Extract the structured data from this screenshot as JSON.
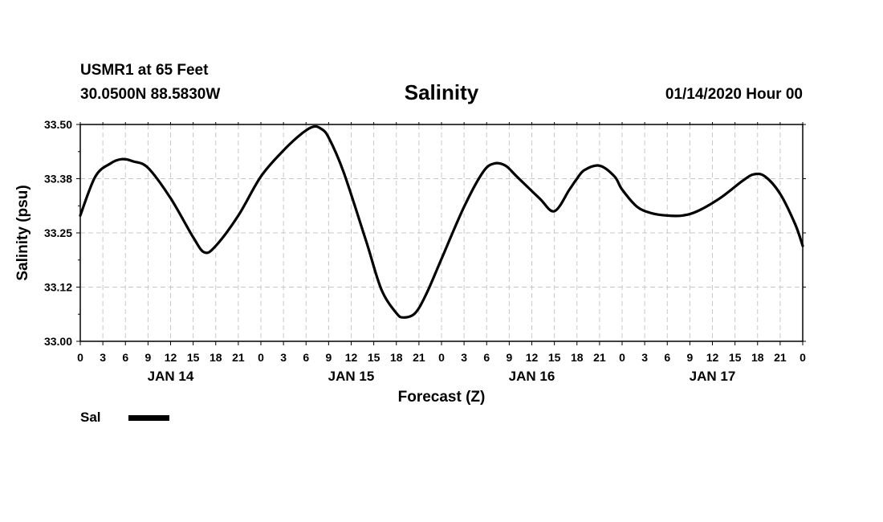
{
  "header": {
    "station": "USMR1 at 65 Feet",
    "coords": "30.0500N 88.5830W",
    "title": "Salinity",
    "run_time": "01/14/2020 Hour 00"
  },
  "legend": {
    "label": "Sal",
    "color": "#000000"
  },
  "chart_data": {
    "type": "line",
    "title": "Salinity",
    "xlabel": "Forecast (Z)",
    "ylabel": "Salinity (psu)",
    "ylim": [
      33.0,
      33.5
    ],
    "y_ticks": [
      "33.00",
      "33.12",
      "33.25",
      "33.38",
      "33.50"
    ],
    "xlim": [
      0,
      96
    ],
    "x_units": "hours from 01/14/2020 00Z",
    "x_tick_labels": [
      "0",
      "3",
      "6",
      "9",
      "12",
      "15",
      "18",
      "21",
      "0",
      "3",
      "6",
      "9",
      "12",
      "15",
      "18",
      "21",
      "0",
      "3",
      "6",
      "9",
      "12",
      "15",
      "18",
      "21",
      "0",
      "3",
      "6",
      "9",
      "12",
      "15",
      "18",
      "21",
      "0"
    ],
    "date_labels": [
      {
        "label": "JAN 14",
        "hour": 12
      },
      {
        "label": "JAN 15",
        "hour": 36
      },
      {
        "label": "JAN 16",
        "hour": 60
      },
      {
        "label": "JAN 17",
        "hour": 84
      }
    ],
    "grid": true,
    "legend_position": "bottom-left",
    "series": [
      {
        "name": "Sal",
        "color": "#000000",
        "x": [
          0,
          2,
          4,
          5.5,
          7,
          9,
          12,
          15,
          16.5,
          18,
          21,
          24,
          27,
          29.5,
          31,
          32,
          33,
          35,
          38,
          40,
          42,
          43,
          44.5,
          46,
          48,
          51,
          53.5,
          55,
          56.5,
          58,
          61,
          63,
          65,
          66,
          67,
          69,
          71,
          72,
          74,
          76,
          78,
          80,
          82,
          85,
          88,
          89.5,
          91,
          93,
          95,
          96
        ],
        "y": [
          33.29,
          33.38,
          33.41,
          33.42,
          33.415,
          33.4,
          33.33,
          33.24,
          33.205,
          33.22,
          33.29,
          33.38,
          33.44,
          33.48,
          33.495,
          33.49,
          33.47,
          33.39,
          33.23,
          33.12,
          33.065,
          33.055,
          33.065,
          33.11,
          33.19,
          33.31,
          33.39,
          33.41,
          33.405,
          33.38,
          33.33,
          33.3,
          33.35,
          33.375,
          33.395,
          33.405,
          33.38,
          33.35,
          33.31,
          33.295,
          33.29,
          33.29,
          33.3,
          33.33,
          33.37,
          33.385,
          33.38,
          33.34,
          33.27,
          33.22
        ]
      }
    ]
  }
}
